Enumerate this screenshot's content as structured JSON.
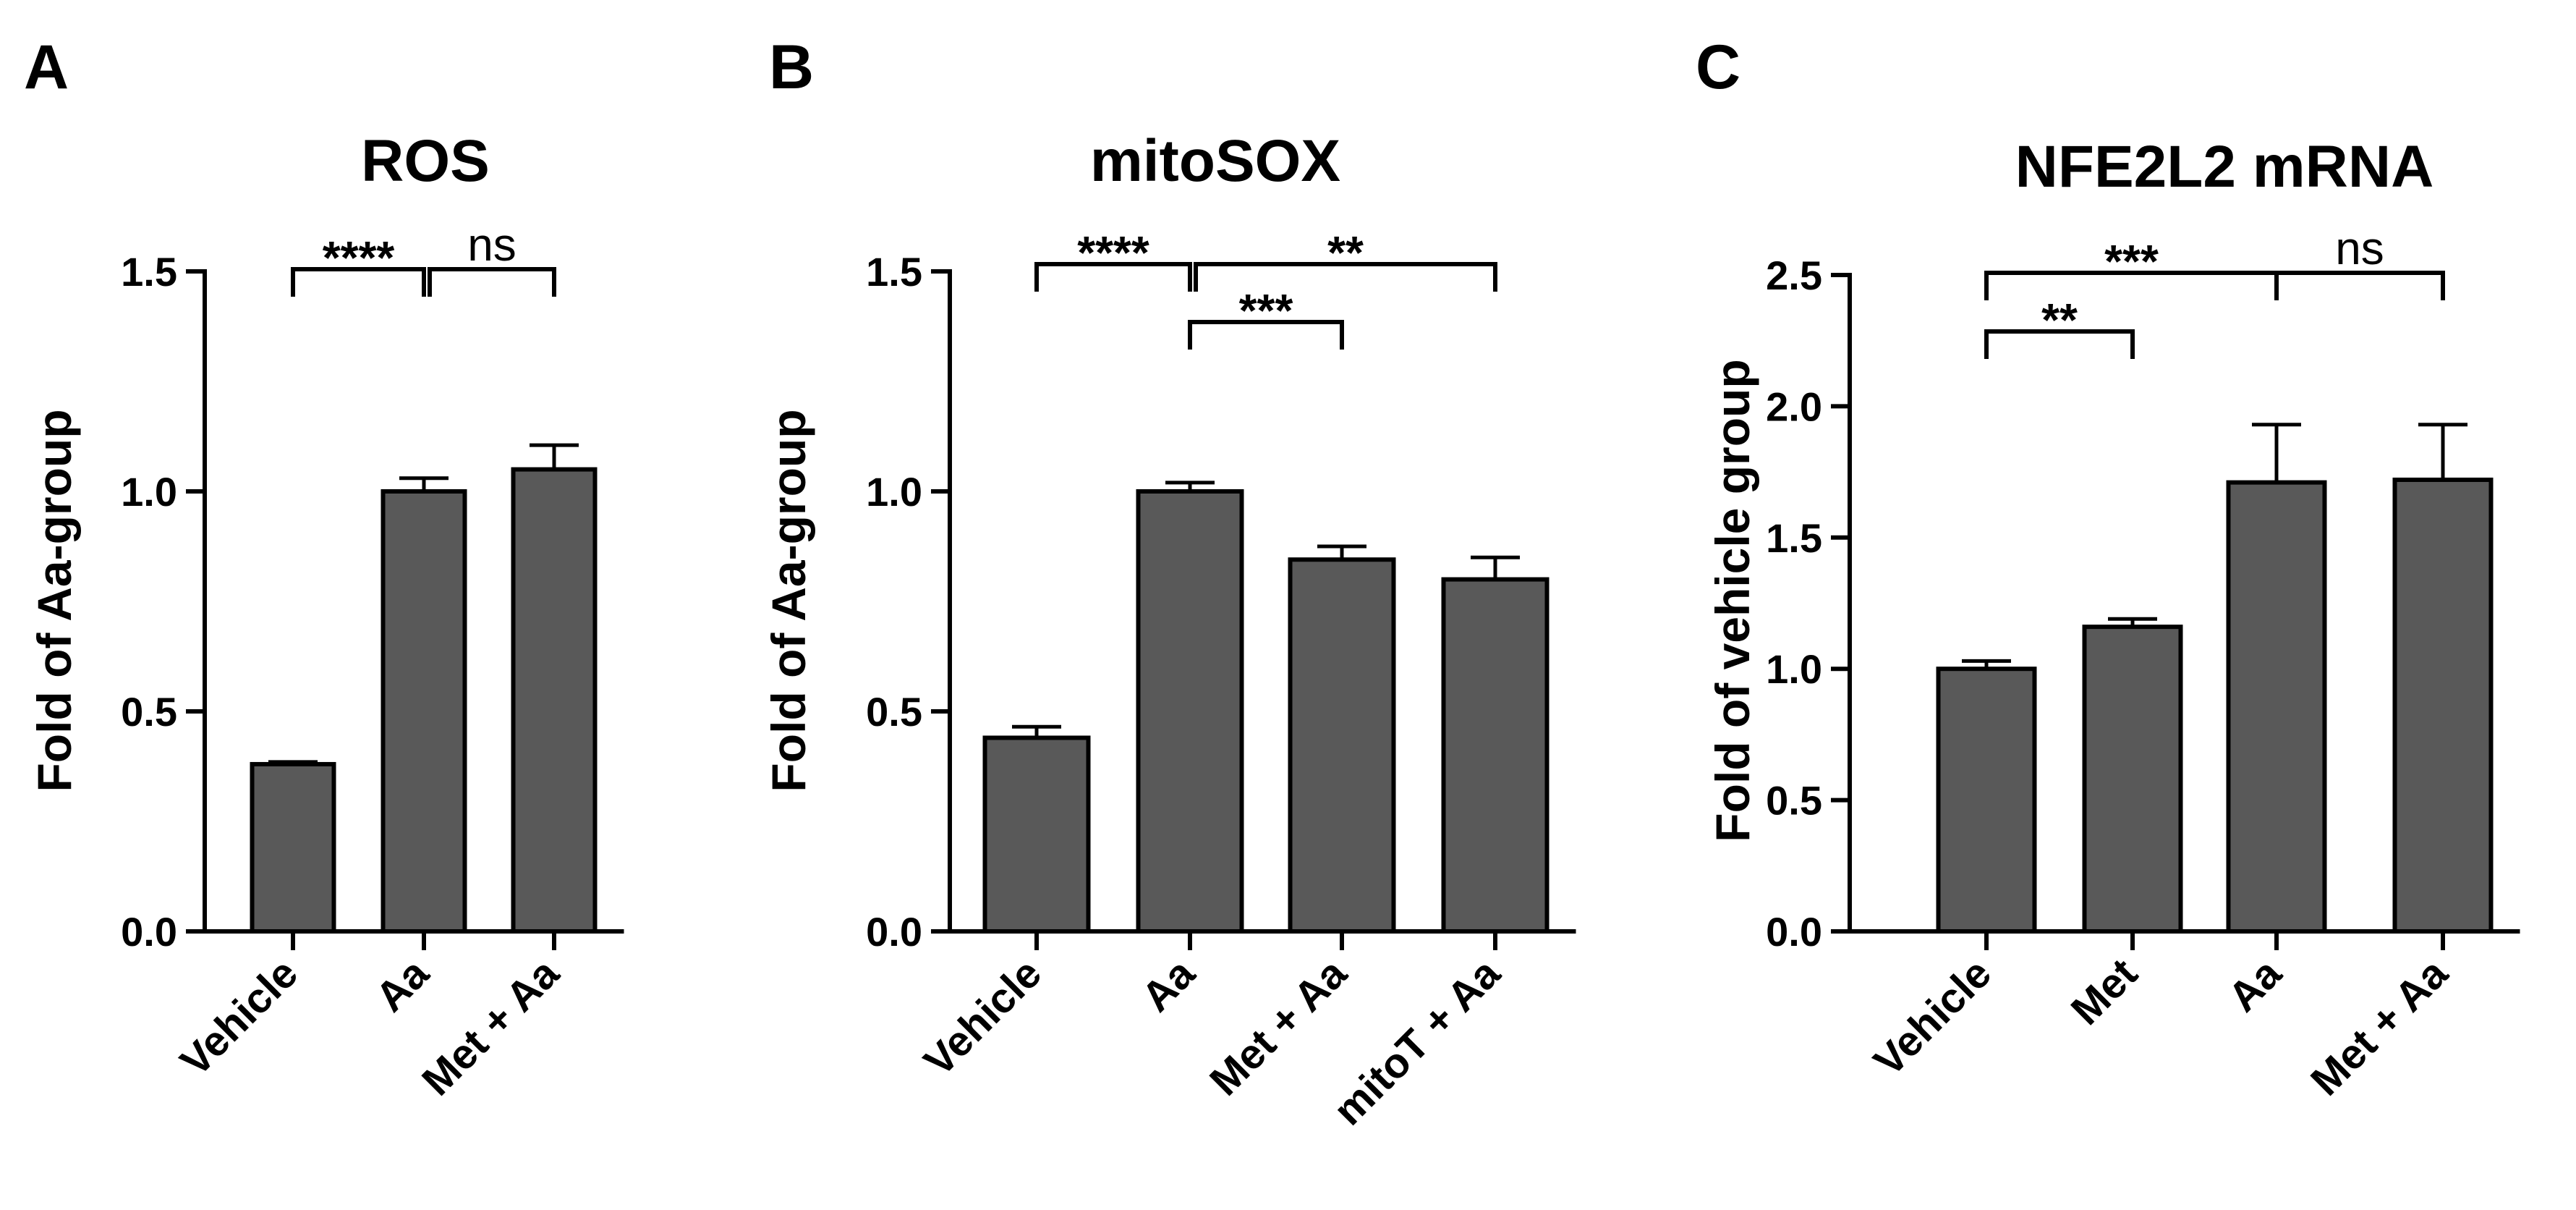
{
  "colors": {
    "bar_fill": "#595959",
    "stroke": "#000000",
    "background": "#ffffff"
  },
  "chart_data": [
    {
      "panel": "A",
      "type": "bar",
      "title": "ROS",
      "ylabel": "Fold of Aa-group",
      "xlabel": "",
      "ylim": [
        0,
        1.5
      ],
      "yticks": [
        0.0,
        0.5,
        1.0,
        1.5
      ],
      "ytick_labels": [
        "0.0",
        "0.5",
        "1.0",
        "1.5"
      ],
      "categories": [
        "Vehicle",
        "Aa",
        "Met + Aa"
      ],
      "values": [
        0.38,
        1.0,
        1.05
      ],
      "error": [
        0.005,
        0.03,
        0.055
      ],
      "grid": false,
      "significance": [
        {
          "from": 0,
          "to": 1,
          "label": "****",
          "level": 0
        },
        {
          "from": 1,
          "to": 2,
          "label": "ns",
          "level": 0
        }
      ]
    },
    {
      "panel": "B",
      "type": "bar",
      "title": "mitoSOX",
      "ylabel": "Fold of Aa-group",
      "xlabel": "",
      "ylim": [
        0,
        1.5
      ],
      "yticks": [
        0.0,
        0.5,
        1.0,
        1.5
      ],
      "ytick_labels": [
        "0.0",
        "0.5",
        "1.0",
        "1.5"
      ],
      "categories": [
        "Vehicle",
        "Aa",
        "Met + Aa",
        "mitoT + Aa"
      ],
      "values": [
        0.44,
        1.0,
        0.845,
        0.8
      ],
      "error": [
        0.025,
        0.02,
        0.03,
        0.05
      ],
      "grid": false,
      "significance": [
        {
          "from": 0,
          "to": 1,
          "label": "****",
          "level": 0
        },
        {
          "from": 1,
          "to": 3,
          "label": "**",
          "level": 0
        },
        {
          "from": 1,
          "to": 2,
          "label": "***",
          "level": 1
        }
      ]
    },
    {
      "panel": "C",
      "type": "bar",
      "title": "NFE2L2 mRNA",
      "ylabel": "Fold of vehicle group",
      "xlabel": "",
      "ylim": [
        0,
        2.5
      ],
      "yticks": [
        0.0,
        0.5,
        1.0,
        1.5,
        2.0,
        2.5
      ],
      "ytick_labels": [
        "0.0",
        "0.5",
        "1.0",
        "1.5",
        "2.0",
        "2.5"
      ],
      "categories": [
        "Vehicle",
        "Met",
        "Aa",
        "Met + Aa"
      ],
      "values": [
        1.0,
        1.16,
        1.71,
        1.72
      ],
      "error": [
        0.03,
        0.03,
        0.22,
        0.21
      ],
      "grid": false,
      "significance": [
        {
          "from": 0,
          "to": 2,
          "label": "***",
          "level": 0
        },
        {
          "from": 2,
          "to": 3,
          "label": "ns",
          "level": 0
        },
        {
          "from": 0,
          "to": 1,
          "label": "**",
          "level": 1
        }
      ]
    }
  ]
}
